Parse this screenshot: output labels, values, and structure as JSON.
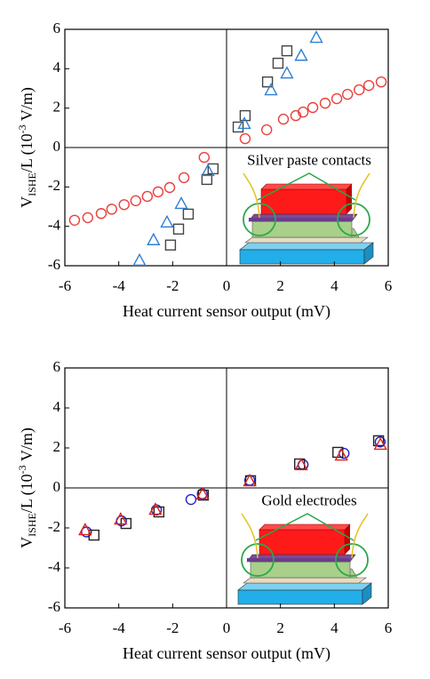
{
  "chart_data": [
    {
      "type": "scatter",
      "xlabel": "Heat current sensor output (mV)",
      "ylabel_parts": [
        "V",
        "ISHE",
        "/L (10",
        "-3",
        " V/m)"
      ],
      "annotation": "Silver paste contacts",
      "xlim": [
        -6,
        6
      ],
      "ylim": [
        -6,
        6
      ],
      "xticks": [
        -6,
        -4,
        -2,
        0,
        2,
        4,
        6
      ],
      "yticks": [
        -6,
        -4,
        -2,
        0,
        2,
        4,
        6
      ],
      "zero_lines": true,
      "series": [
        {
          "marker": "circle",
          "color": "#e8413c",
          "x": [
            -5.64,
            -5.15,
            -4.65,
            -4.26,
            -3.8,
            -3.37,
            -2.94,
            -2.54,
            -2.11,
            -1.58,
            -0.83,
            0.69,
            1.49,
            2.11,
            2.57,
            2.84,
            3.2,
            3.66,
            4.09,
            4.49,
            4.92,
            5.28,
            5.74
          ],
          "values": [
            -3.69,
            -3.56,
            -3.35,
            -3.13,
            -2.9,
            -2.7,
            -2.48,
            -2.25,
            -2.03,
            -1.53,
            -0.5,
            0.45,
            0.9,
            1.44,
            1.62,
            1.8,
            2.03,
            2.25,
            2.48,
            2.7,
            2.93,
            3.15,
            3.33
          ]
        },
        {
          "marker": "square",
          "color": "#444444",
          "x": [
            -2.08,
            -1.78,
            -1.42,
            -0.73,
            -0.5,
            0.43,
            0.69,
            1.52,
            1.91,
            2.24
          ],
          "values": [
            -4.95,
            -4.14,
            -3.38,
            -1.62,
            -1.08,
            1.04,
            1.62,
            3.33,
            4.28,
            4.91
          ]
        },
        {
          "marker": "triangle",
          "color": "#2f7fd4",
          "x": [
            -3.23,
            -2.71,
            -2.21,
            -1.68,
            -0.69,
            0.66,
            1.65,
            2.24,
            2.77,
            3.33
          ],
          "values": [
            -5.72,
            -4.68,
            -3.78,
            -2.84,
            -1.17,
            1.22,
            2.93,
            3.78,
            4.68,
            5.59
          ]
        }
      ]
    },
    {
      "type": "scatter",
      "xlabel": "Heat current sensor output (mV)",
      "ylabel_parts": [
        "V",
        "ISHE",
        "/L (10",
        "-3",
        " V/m)"
      ],
      "annotation": "Gold electrodes",
      "xlim": [
        -6,
        6
      ],
      "ylim": [
        -6,
        6
      ],
      "xticks": [
        -6,
        -4,
        -2,
        0,
        2,
        4,
        6
      ],
      "yticks": [
        -6,
        -4,
        -2,
        0,
        2,
        4,
        6
      ],
      "zero_lines": true,
      "series": [
        {
          "marker": "circle",
          "color": "#2020d0",
          "x": [
            -5.2,
            -3.9,
            -2.6,
            -1.32,
            -0.9,
            0.86,
            2.84,
            4.36,
            5.7
          ],
          "values": [
            -2.2,
            -1.65,
            -1.1,
            -0.58,
            -0.3,
            0.38,
            1.16,
            1.73,
            2.3
          ]
        },
        {
          "marker": "square",
          "color": "#222222",
          "x": [
            -4.92,
            -3.73,
            -2.51,
            -0.86,
            0.89,
            2.71,
            4.13,
            5.64
          ],
          "values": [
            -2.36,
            -1.78,
            -1.2,
            -0.36,
            0.36,
            1.2,
            1.78,
            2.36
          ]
        },
        {
          "marker": "triangle",
          "color": "#e0201b",
          "x": [
            -5.25,
            -3.93,
            -2.64,
            -0.89,
            0.86,
            2.77,
            4.26,
            5.71
          ],
          "values": [
            -2.09,
            -1.56,
            -1.07,
            -0.31,
            0.36,
            1.16,
            1.64,
            2.18
          ]
        }
      ]
    }
  ]
}
